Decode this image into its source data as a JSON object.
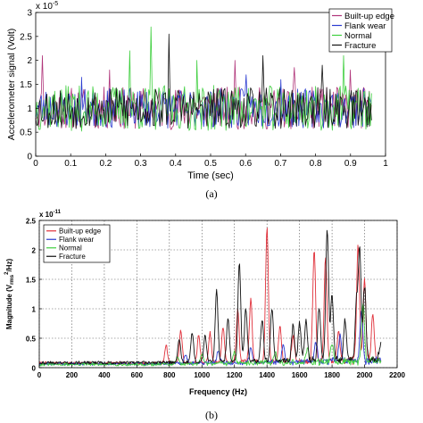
{
  "captions": {
    "a": "(a)",
    "b": "(b)"
  },
  "chart_data": [
    {
      "type": "line",
      "ylabel": "Accelerometer signal (Volt)",
      "xlabel": "Time (sec)",
      "y_exponent": "x 10",
      "y_exponent_power": "-5",
      "xlim": [
        0,
        1
      ],
      "ylim": [
        0,
        3
      ],
      "xticks": [
        "0",
        "0.1",
        "0.2",
        "0.3",
        "0.4",
        "0.5",
        "0.6",
        "0.7",
        "0.8",
        "0.9",
        "1"
      ],
      "yticks": [
        "0",
        "0.5",
        "1",
        "1.5",
        "2",
        "2.5",
        "3"
      ],
      "grid": false,
      "legend_position": "top-right",
      "series": [
        {
          "name": "Built-up edge",
          "color": "#b0357a",
          "x_end": 0.96,
          "mean": 1.0,
          "spread": 0.28,
          "seed": 11,
          "peaks": [
            [
              0.02,
              2.1
            ],
            [
              0.21,
              1.8
            ],
            [
              0.57,
              2.0
            ],
            [
              0.74,
              1.85
            ],
            [
              0.9,
              1.8
            ]
          ]
        },
        {
          "name": "Flank wear",
          "color": "#2a3bd0",
          "x_end": 0.96,
          "mean": 1.0,
          "spread": 0.26,
          "seed": 23,
          "peaks": [
            [
              0.13,
              1.65
            ],
            [
              0.6,
              1.7
            ],
            [
              0.7,
              1.6
            ]
          ]
        },
        {
          "name": "Normal",
          "color": "#3fcf3f",
          "x_end": 0.96,
          "mean": 1.0,
          "spread": 0.3,
          "seed": 37,
          "peaks": [
            [
              0.27,
              2.2
            ],
            [
              0.33,
              2.7
            ],
            [
              0.46,
              2.0
            ],
            [
              0.88,
              2.1
            ]
          ]
        },
        {
          "name": "Fracture",
          "color": "#111111",
          "x_end": 0.96,
          "mean": 1.0,
          "spread": 0.27,
          "seed": 53,
          "peaks": [
            [
              0.38,
              2.55
            ],
            [
              0.65,
              2.1
            ],
            [
              0.82,
              1.9
            ]
          ]
        }
      ]
    },
    {
      "type": "line",
      "ylabel": "Magnitude (V",
      "ylabel_sub": "rms",
      "ylabel_sup": "2",
      "ylabel_tail": "/Hz)",
      "xlabel": "Frequency (Hz)",
      "y_exponent": "x 10",
      "y_exponent_power": "-11",
      "xlim": [
        0,
        2200
      ],
      "ylim": [
        0,
        2.5
      ],
      "xticks": [
        "0",
        "200",
        "400",
        "600",
        "800",
        "1000",
        "1200",
        "1400",
        "1600",
        "1800",
        "2000",
        "2200"
      ],
      "yticks": [
        "0",
        "0.5",
        "1",
        "1.5",
        "2",
        "2.5"
      ],
      "grid": true,
      "legend_position": "top-left",
      "series": [
        {
          "name": "Built-up edge",
          "color": "#e0303a",
          "x_end": 2100,
          "seed": 7,
          "base": 0.05,
          "peaks": [
            [
              780,
              0.3
            ],
            [
              870,
              0.55
            ],
            [
              980,
              0.45
            ],
            [
              1050,
              0.5
            ],
            [
              1130,
              0.6
            ],
            [
              1220,
              0.9
            ],
            [
              1300,
              1.05
            ],
            [
              1400,
              2.27
            ],
            [
              1480,
              0.6
            ],
            [
              1560,
              0.45
            ],
            [
              1690,
              1.93
            ],
            [
              1760,
              1.75
            ],
            [
              1840,
              0.5
            ],
            [
              1960,
              1.92
            ],
            [
              2000,
              1.35
            ],
            [
              2050,
              0.8
            ]
          ]
        },
        {
          "name": "Flank wear",
          "color": "#2a3bd0",
          "x_end": 2100,
          "seed": 19,
          "base": 0.04,
          "peaks": [
            [
              900,
              0.15
            ],
            [
              1100,
              0.2
            ],
            [
              1300,
              0.25
            ],
            [
              1500,
              0.3
            ],
            [
              1700,
              0.35
            ],
            [
              1850,
              0.4
            ],
            [
              1980,
              0.85
            ]
          ]
        },
        {
          "name": "Normal",
          "color": "#3fcf3f",
          "x_end": 2100,
          "seed": 31,
          "base": 0.03,
          "peaks": [
            [
              850,
              0.12
            ],
            [
              1000,
              0.15
            ],
            [
              1200,
              0.18
            ],
            [
              1450,
              0.2
            ],
            [
              1650,
              0.25
            ],
            [
              1800,
              0.3
            ],
            [
              1990,
              1.0
            ]
          ]
        },
        {
          "name": "Fracture",
          "color": "#111111",
          "x_end": 2100,
          "seed": 43,
          "base": 0.06,
          "peaks": [
            [
              860,
              0.4
            ],
            [
              940,
              0.5
            ],
            [
              1020,
              0.45
            ],
            [
              1090,
              1.2
            ],
            [
              1160,
              0.75
            ],
            [
              1230,
              1.7
            ],
            [
              1270,
              0.9
            ],
            [
              1370,
              0.7
            ],
            [
              1430,
              0.9
            ],
            [
              1560,
              0.6
            ],
            [
              1600,
              0.65
            ],
            [
              1640,
              0.7
            ],
            [
              1720,
              0.9
            ],
            [
              1770,
              2.25
            ],
            [
              1800,
              1.1
            ],
            [
              1880,
              0.7
            ],
            [
              1950,
              0.95
            ],
            [
              1970,
              1.9
            ],
            [
              2000,
              1.25
            ],
            [
              2100,
              0.3
            ]
          ]
        }
      ]
    }
  ]
}
